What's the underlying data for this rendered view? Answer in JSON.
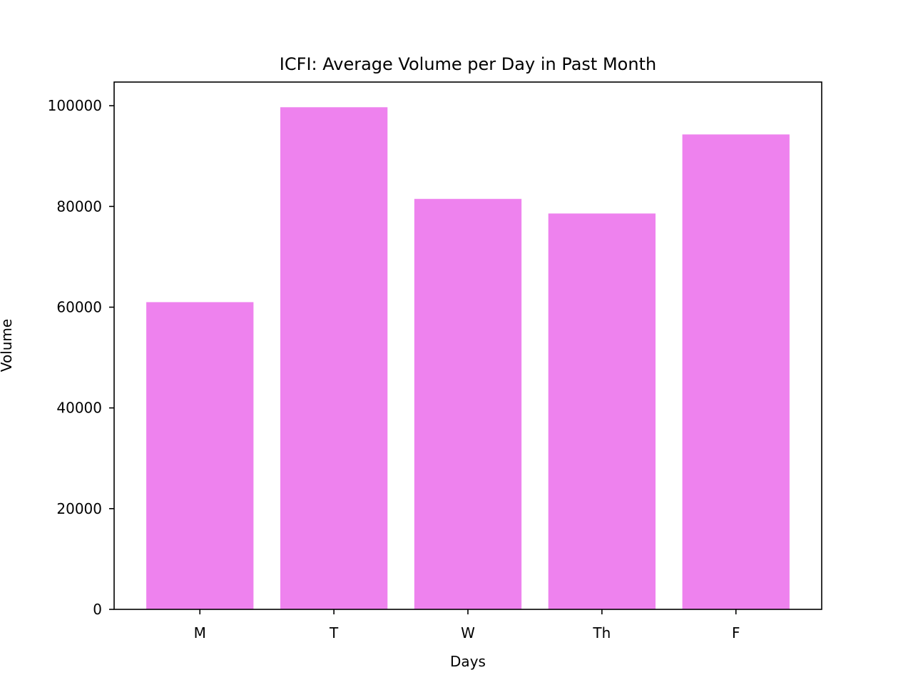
{
  "chart_data": {
    "type": "bar",
    "title": "ICFI: Average Volume per Day in Past Month",
    "xlabel": "Days",
    "ylabel": "Volume",
    "categories": [
      "M",
      "T",
      "W",
      "Th",
      "F"
    ],
    "values": [
      61000,
      99700,
      81500,
      78600,
      94300
    ],
    "ylim": [
      0,
      104700
    ],
    "yticks": [
      0,
      20000,
      40000,
      60000,
      80000,
      100000
    ],
    "bar_color": "#ee82ee",
    "grid": false,
    "legend": "none"
  }
}
